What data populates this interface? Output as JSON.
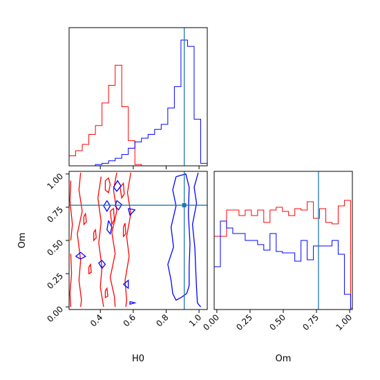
{
  "chart_data": {
    "type": "corner",
    "colors": {
      "series_a": "#0000ff",
      "series_b": "#ff0000",
      "truth": "#1f77b4"
    },
    "truth": {
      "H0": 0.91,
      "Om": 0.765
    },
    "axis_labels": {
      "x_left": "H0",
      "x_right": "Om",
      "y_left": "Om"
    },
    "h0_axis": {
      "range": [
        0.21,
        1.05
      ],
      "ticks": [
        0.4,
        0.6,
        0.8,
        1.0
      ],
      "tick_labels": [
        "0.4",
        "0.6",
        "0.8",
        "1.0"
      ]
    },
    "om_axis": {
      "range": [
        -0.02,
        1.02
      ],
      "ticks": [
        0.0,
        0.25,
        0.5,
        0.75,
        1.0
      ],
      "tick_labels": [
        "0.00",
        "0.25",
        "0.50",
        "0.75",
        "1.00"
      ]
    },
    "hist_h0": {
      "bin_edges": [
        0.21,
        0.25,
        0.29,
        0.33,
        0.37,
        0.41,
        0.45,
        0.49,
        0.53,
        0.57,
        0.61,
        0.65,
        0.69,
        0.73,
        0.77,
        0.81,
        0.85,
        0.89,
        0.93,
        0.97,
        1.01,
        1.05
      ],
      "series_a": [
        0,
        0,
        0,
        0,
        0.01,
        0.02,
        0.04,
        0.06,
        0.09,
        0.14,
        0.19,
        0.22,
        0.25,
        0.29,
        0.33,
        0.46,
        0.63,
        1.0,
        0.95,
        0.37,
        0.02
      ],
      "series_b": [
        0.08,
        0.12,
        0.17,
        0.25,
        0.32,
        0.5,
        0.64,
        0.8,
        0.47,
        0.2,
        0.01,
        0,
        0,
        0,
        0,
        0,
        0,
        0,
        0,
        0,
        0
      ]
    },
    "hist_om": {
      "bin_edges": [
        -0.02,
        0.0267,
        0.0733,
        0.12,
        0.1667,
        0.2133,
        0.26,
        0.3067,
        0.3533,
        0.4,
        0.4467,
        0.4933,
        0.54,
        0.5867,
        0.6333,
        0.68,
        0.7267,
        0.7733,
        0.82,
        0.8667,
        0.9133,
        0.96,
        1.0067,
        1.02
      ],
      "series_a": [
        0.31,
        0.64,
        0.59,
        0.55,
        0.55,
        0.5,
        0.5,
        0.47,
        0.43,
        0.55,
        0.42,
        0.41,
        0.41,
        0.35,
        0.5,
        0.36,
        0.46,
        0.46,
        0.46,
        0.5,
        0.4,
        0.11,
        0
      ],
      "series_b": [
        0.53,
        0.53,
        0.72,
        0.72,
        0.68,
        0.72,
        0.68,
        0.72,
        0.63,
        0.72,
        0.74,
        0.71,
        0.68,
        0.73,
        0.72,
        0.78,
        0.66,
        0.73,
        0.63,
        0.62,
        0.75,
        0.79,
        0.01
      ]
    },
    "contours_series_a": [
      [
        [
          0.995,
          1.01
        ],
        [
          0.97,
          0.9
        ],
        [
          0.985,
          0.78
        ],
        [
          0.96,
          0.62
        ],
        [
          0.975,
          0.44
        ],
        [
          0.98,
          0.28
        ],
        [
          0.985,
          0.14
        ],
        [
          0.99,
          0.03
        ],
        [
          1.01,
          0.0
        ]
      ],
      [
        [
          0.86,
          0.98
        ],
        [
          0.84,
          0.88
        ],
        [
          0.86,
          0.76
        ],
        [
          0.83,
          0.6
        ],
        [
          0.845,
          0.45
        ],
        [
          0.81,
          0.32
        ],
        [
          0.83,
          0.2
        ],
        [
          0.84,
          0.1
        ],
        [
          0.86,
          0.05
        ],
        [
          0.89,
          0.07
        ],
        [
          0.925,
          0.1
        ],
        [
          0.94,
          0.16
        ],
        [
          0.94,
          0.3
        ],
        [
          0.945,
          0.48
        ],
        [
          0.935,
          0.7
        ],
        [
          0.94,
          0.9
        ],
        [
          0.92,
          1.0
        ],
        [
          0.86,
          0.98
        ]
      ],
      [
        [
          0.48,
          0.9
        ],
        [
          0.505,
          0.95
        ],
        [
          0.525,
          0.91
        ],
        [
          0.5,
          0.87
        ],
        [
          0.48,
          0.9
        ]
      ],
      [
        [
          0.44,
          0.8
        ],
        [
          0.46,
          0.76
        ],
        [
          0.44,
          0.72
        ],
        [
          0.42,
          0.76
        ],
        [
          0.44,
          0.8
        ]
      ],
      [
        [
          0.5,
          0.8
        ],
        [
          0.53,
          0.77
        ],
        [
          0.51,
          0.73
        ],
        [
          0.49,
          0.76
        ],
        [
          0.5,
          0.8
        ]
      ],
      [
        [
          0.57,
          0.74
        ],
        [
          0.61,
          0.73
        ],
        [
          0.58,
          0.69
        ],
        [
          0.57,
          0.74
        ]
      ],
      [
        [
          0.45,
          0.65
        ],
        [
          0.47,
          0.6
        ],
        [
          0.46,
          0.55
        ],
        [
          0.44,
          0.58
        ],
        [
          0.45,
          0.65
        ]
      ],
      [
        [
          0.25,
          0.38
        ],
        [
          0.28,
          0.41
        ],
        [
          0.31,
          0.38
        ],
        [
          0.28,
          0.36
        ],
        [
          0.25,
          0.38
        ]
      ],
      [
        [
          0.41,
          0.35
        ],
        [
          0.43,
          0.32
        ],
        [
          0.41,
          0.29
        ],
        [
          0.39,
          0.33
        ],
        [
          0.41,
          0.35
        ]
      ],
      [
        [
          0.54,
          0.17
        ],
        [
          0.57,
          0.2
        ],
        [
          0.57,
          0.14
        ],
        [
          0.54,
          0.17
        ]
      ],
      [
        [
          0.58,
          0.04
        ],
        [
          0.61,
          0.03
        ],
        [
          0.58,
          0.02
        ],
        [
          0.58,
          0.04
        ]
      ]
    ],
    "contours_series_b": [
      [
        [
          0.28,
          1.01
        ],
        [
          0.27,
          0.88
        ],
        [
          0.29,
          0.72
        ],
        [
          0.26,
          0.55
        ],
        [
          0.28,
          0.35
        ],
        [
          0.27,
          0.2
        ],
        [
          0.285,
          0.05
        ],
        [
          0.28,
          0.0
        ]
      ],
      [
        [
          0.22,
          0.95
        ],
        [
          0.215,
          0.8
        ],
        [
          0.23,
          0.62
        ],
        [
          0.22,
          0.5
        ]
      ],
      [
        [
          0.22,
          0.4
        ],
        [
          0.225,
          0.25
        ],
        [
          0.215,
          0.1
        ],
        [
          0.22,
          0.0
        ]
      ],
      [
        [
          0.405,
          0.98
        ],
        [
          0.385,
          0.82
        ],
        [
          0.405,
          0.64
        ],
        [
          0.39,
          0.48
        ],
        [
          0.41,
          0.3
        ],
        [
          0.4,
          0.15
        ],
        [
          0.42,
          0.0
        ]
      ],
      [
        [
          0.5,
          1.01
        ],
        [
          0.48,
          0.88
        ],
        [
          0.5,
          0.72
        ],
        [
          0.47,
          0.56
        ],
        [
          0.49,
          0.4
        ],
        [
          0.46,
          0.22
        ],
        [
          0.485,
          0.08
        ],
        [
          0.49,
          0.0
        ]
      ],
      [
        [
          0.585,
          1.01
        ],
        [
          0.565,
          0.86
        ],
        [
          0.585,
          0.7
        ],
        [
          0.56,
          0.53
        ],
        [
          0.575,
          0.38
        ],
        [
          0.55,
          0.2
        ],
        [
          0.56,
          0.05
        ],
        [
          0.555,
          0.0
        ]
      ],
      [
        [
          0.43,
          0.95
        ],
        [
          0.45,
          0.97
        ],
        [
          0.46,
          0.92
        ],
        [
          0.45,
          0.86
        ],
        [
          0.43,
          0.88
        ],
        [
          0.43,
          0.95
        ]
      ],
      [
        [
          0.52,
          0.9
        ],
        [
          0.54,
          0.93
        ],
        [
          0.545,
          0.85
        ],
        [
          0.53,
          0.82
        ],
        [
          0.52,
          0.9
        ]
      ],
      [
        [
          0.46,
          0.72
        ],
        [
          0.48,
          0.74
        ],
        [
          0.485,
          0.66
        ],
        [
          0.47,
          0.62
        ],
        [
          0.46,
          0.72
        ]
      ],
      [
        [
          0.54,
          0.6
        ],
        [
          0.55,
          0.63
        ],
        [
          0.555,
          0.55
        ],
        [
          0.54,
          0.53
        ],
        [
          0.54,
          0.6
        ]
      ],
      [
        [
          0.3,
          0.68
        ],
        [
          0.31,
          0.7
        ],
        [
          0.315,
          0.64
        ],
        [
          0.3,
          0.62
        ],
        [
          0.3,
          0.68
        ]
      ],
      [
        [
          0.36,
          0.56
        ],
        [
          0.37,
          0.58
        ],
        [
          0.375,
          0.52
        ],
        [
          0.36,
          0.5
        ],
        [
          0.36,
          0.56
        ]
      ],
      [
        [
          0.33,
          0.3
        ],
        [
          0.34,
          0.32
        ],
        [
          0.345,
          0.26
        ],
        [
          0.33,
          0.25
        ],
        [
          0.33,
          0.3
        ]
      ],
      [
        [
          0.43,
          0.12
        ],
        [
          0.44,
          0.14
        ],
        [
          0.445,
          0.08
        ],
        [
          0.43,
          0.07
        ],
        [
          0.43,
          0.12
        ]
      ]
    ]
  }
}
